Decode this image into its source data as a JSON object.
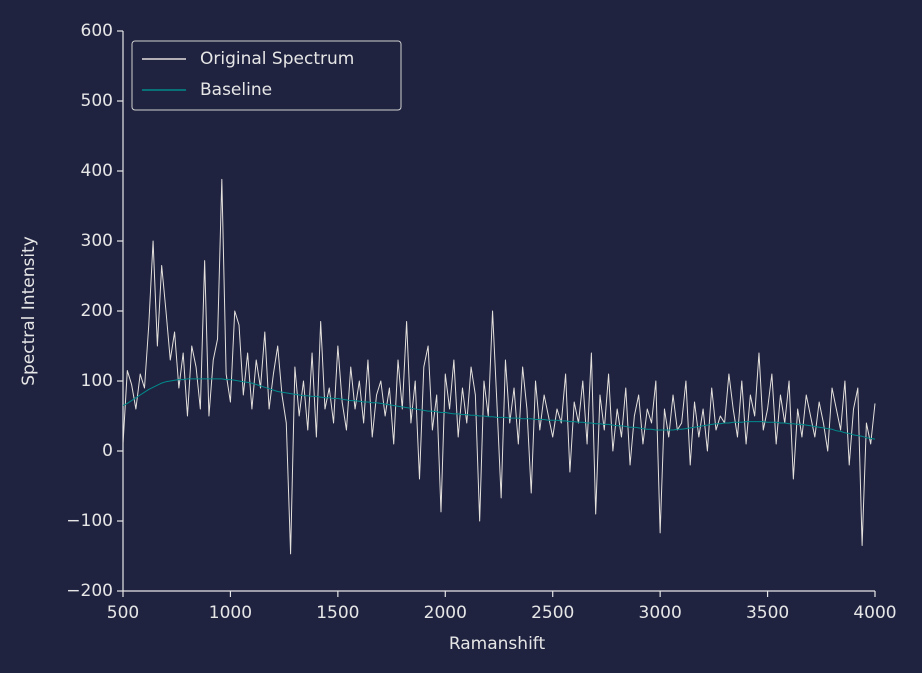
{
  "chart_data": {
    "type": "line",
    "xlabel": "Ramanshift",
    "ylabel": "Spectral Intensity",
    "xlim": [
      500,
      4000
    ],
    "xticks": [
      500,
      1000,
      1500,
      2000,
      2500,
      3000,
      3500,
      4000
    ],
    "ylim": [
      -200,
      600
    ],
    "yticks": [
      {
        "value": -200,
        "label": "−200"
      },
      {
        "value": -100,
        "label": "−100"
      },
      0,
      100,
      200,
      300,
      400,
      500,
      600
    ],
    "grid": false,
    "legend": "upper left",
    "x": [
      500,
      520,
      540,
      560,
      580,
      600,
      620,
      640,
      660,
      680,
      700,
      720,
      740,
      760,
      780,
      800,
      820,
      840,
      860,
      880,
      900,
      920,
      940,
      960,
      980,
      1000,
      1020,
      1040,
      1060,
      1080,
      1100,
      1120,
      1140,
      1160,
      1180,
      1200,
      1220,
      1240,
      1260,
      1280,
      1300,
      1320,
      1340,
      1360,
      1380,
      1400,
      1420,
      1440,
      1460,
      1480,
      1500,
      1520,
      1540,
      1560,
      1580,
      1600,
      1620,
      1640,
      1660,
      1680,
      1700,
      1720,
      1740,
      1760,
      1780,
      1800,
      1820,
      1840,
      1860,
      1880,
      1900,
      1920,
      1940,
      1960,
      1980,
      2000,
      2020,
      2040,
      2060,
      2080,
      2100,
      2120,
      2140,
      2160,
      2180,
      2200,
      2220,
      2240,
      2260,
      2280,
      2300,
      2320,
      2340,
      2360,
      2380,
      2400,
      2420,
      2440,
      2460,
      2480,
      2500,
      2520,
      2540,
      2560,
      2580,
      2600,
      2620,
      2640,
      2660,
      2680,
      2700,
      2720,
      2740,
      2760,
      2780,
      2800,
      2820,
      2840,
      2860,
      2880,
      2900,
      2920,
      2940,
      2960,
      2980,
      3000,
      3020,
      3040,
      3060,
      3080,
      3100,
      3120,
      3140,
      3160,
      3180,
      3200,
      3220,
      3240,
      3260,
      3280,
      3300,
      3320,
      3340,
      3360,
      3380,
      3400,
      3420,
      3440,
      3460,
      3480,
      3500,
      3520,
      3540,
      3560,
      3580,
      3600,
      3620,
      3640,
      3660,
      3680,
      3700,
      3720,
      3740,
      3760,
      3780,
      3800,
      3820,
      3840,
      3860,
      3880,
      3900,
      3920,
      3940,
      3960,
      3980,
      4000
    ],
    "series": [
      {
        "name": "Original Spectrum",
        "color": "#e4e0dc",
        "values": [
          10,
          115,
          95,
          60,
          110,
          90,
          180,
          300,
          150,
          265,
          200,
          130,
          170,
          90,
          140,
          50,
          150,
          120,
          60,
          272,
          50,
          130,
          160,
          388,
          110,
          70,
          200,
          180,
          80,
          140,
          60,
          130,
          90,
          170,
          60,
          110,
          150,
          80,
          40,
          -147,
          120,
          50,
          100,
          30,
          140,
          20,
          185,
          60,
          90,
          40,
          150,
          70,
          30,
          120,
          60,
          100,
          40,
          130,
          20,
          80,
          100,
          50,
          90,
          10,
          130,
          60,
          185,
          40,
          100,
          -40,
          120,
          150,
          30,
          80,
          -87,
          110,
          60,
          130,
          20,
          90,
          40,
          120,
          80,
          -100,
          100,
          50,
          200,
          70,
          -67,
          130,
          40,
          90,
          10,
          120,
          60,
          -60,
          100,
          30,
          80,
          50,
          20,
          60,
          40,
          110,
          -30,
          70,
          40,
          100,
          10,
          140,
          -90,
          80,
          30,
          110,
          0,
          60,
          20,
          90,
          -20,
          50,
          80,
          10,
          60,
          40,
          100,
          -117,
          60,
          20,
          80,
          30,
          40,
          100,
          -20,
          70,
          20,
          60,
          0,
          90,
          30,
          50,
          40,
          110,
          60,
          20,
          100,
          10,
          80,
          50,
          140,
          30,
          60,
          110,
          10,
          80,
          40,
          100,
          -40,
          60,
          20,
          80,
          50,
          20,
          70,
          40,
          0,
          90,
          60,
          30,
          100,
          -20,
          60,
          90,
          -135,
          40,
          10,
          68
        ]
      },
      {
        "name": "Baseline",
        "color": "#008b8b",
        "values": [
          65,
          68,
          72,
          76,
          80,
          84,
          88,
          91,
          94,
          97,
          99,
          100,
          101,
          102,
          102,
          103,
          103,
          103,
          103,
          103,
          103,
          103,
          103,
          103,
          102,
          102,
          101,
          100,
          99,
          98,
          97,
          95,
          93,
          91,
          89,
          87,
          85,
          84,
          83,
          82,
          81,
          80,
          79,
          79,
          78,
          78,
          77,
          76,
          76,
          75,
          75,
          74,
          73,
          72,
          72,
          71,
          70,
          70,
          69,
          69,
          68,
          67,
          66,
          65,
          64,
          63,
          62,
          61,
          60,
          59,
          58,
          57,
          57,
          56,
          55,
          55,
          54,
          53,
          53,
          52,
          52,
          51,
          51,
          50,
          50,
          49,
          49,
          48,
          48,
          48,
          47,
          47,
          47,
          46,
          46,
          46,
          45,
          45,
          45,
          44,
          44,
          44,
          43,
          43,
          42,
          42,
          41,
          41,
          40,
          40,
          39,
          39,
          38,
          38,
          37,
          36,
          36,
          35,
          34,
          34,
          33,
          32,
          31,
          31,
          30,
          30,
          30,
          30,
          30,
          31,
          31,
          32,
          33,
          34,
          35,
          36,
          37,
          38,
          39,
          39,
          40,
          40,
          41,
          41,
          41,
          42,
          42,
          42,
          42,
          42,
          41,
          41,
          41,
          40,
          40,
          39,
          39,
          38,
          38,
          37,
          36,
          35,
          34,
          33,
          32,
          31,
          29,
          28,
          26,
          25,
          23,
          22,
          21,
          19,
          18,
          17
        ]
      }
    ]
  }
}
